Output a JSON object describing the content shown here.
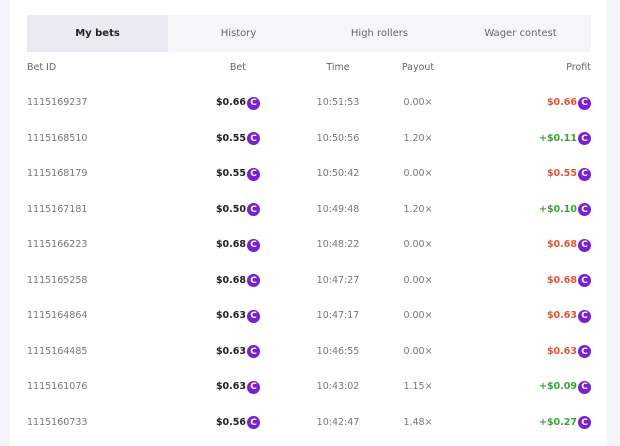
{
  "tabs": [
    "My bets",
    "History",
    "High rollers",
    "Wager contest"
  ],
  "active_tab": 0,
  "columns": {
    "bet_id": "Bet ID",
    "bet": "Bet",
    "time": "Time",
    "payout": "Payout",
    "profit": "Profit"
  },
  "coin_icon": "C",
  "colors": {
    "loss": "#e0553a",
    "win": "#3aa33a",
    "coin": "#7b1fd0"
  },
  "rows": [
    {
      "id": "1115169237",
      "bet": "$0.66",
      "time": "10:51:53",
      "payout": "0.00×",
      "profit": "$0.66",
      "win": false
    },
    {
      "id": "1115168510",
      "bet": "$0.55",
      "time": "10:50:56",
      "payout": "1.20×",
      "profit": "+$0.11",
      "win": true
    },
    {
      "id": "1115168179",
      "bet": "$0.55",
      "time": "10:50:42",
      "payout": "0.00×",
      "profit": "$0.55",
      "win": false
    },
    {
      "id": "1115167181",
      "bet": "$0.50",
      "time": "10:49:48",
      "payout": "1.20×",
      "profit": "+$0.10",
      "win": true
    },
    {
      "id": "1115166223",
      "bet": "$0.68",
      "time": "10:48:22",
      "payout": "0.00×",
      "profit": "$0.68",
      "win": false
    },
    {
      "id": "1115165258",
      "bet": "$0.68",
      "time": "10:47:27",
      "payout": "0.00×",
      "profit": "$0.68",
      "win": false
    },
    {
      "id": "1115164864",
      "bet": "$0.63",
      "time": "10:47:17",
      "payout": "0.00×",
      "profit": "$0.63",
      "win": false
    },
    {
      "id": "1115164485",
      "bet": "$0.63",
      "time": "10:46:55",
      "payout": "0.00×",
      "profit": "$0.63",
      "win": false
    },
    {
      "id": "1115161076",
      "bet": "$0.63",
      "time": "10:43:02",
      "payout": "1.15×",
      "profit": "+$0.09",
      "win": true
    },
    {
      "id": "1115160733",
      "bet": "$0.56",
      "time": "10:42:47",
      "payout": "1.48×",
      "profit": "+$0.27",
      "win": true
    }
  ]
}
